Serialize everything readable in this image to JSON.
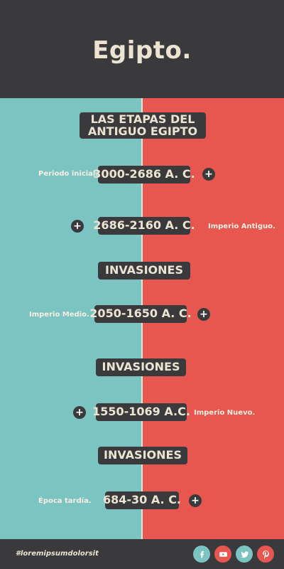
{
  "header": {
    "title": "Egipto."
  },
  "timeline": {
    "heading": "LAS ETAPAS DEL ANTIGUO EGIPTO",
    "entries": [
      {
        "label": "Periodo inicial.",
        "date": "3000-2686 A. C."
      },
      {
        "label": "Imperio Antiguo.",
        "date": "2686-2160 A. C."
      },
      {
        "divider": "INVASIONES"
      },
      {
        "label": "Imperio Medio.",
        "date": "2050-1650 A. C."
      },
      {
        "divider": "INVASIONES"
      },
      {
        "label": "Imperio Nuevo.",
        "date": "1550-1069 A.C."
      },
      {
        "divider": "INVASIONES"
      },
      {
        "label": "Época tardía.",
        "date": "684-30 A. C."
      }
    ]
  },
  "footer": {
    "hashtag": "#loremipsumdolorsit",
    "social": [
      {
        "icon": "facebook-icon",
        "color": "#7cc4c1"
      },
      {
        "icon": "youtube-icon",
        "color": "#e8574f"
      },
      {
        "icon": "twitter-icon",
        "color": "#7cc4c1"
      },
      {
        "icon": "pinterest-icon",
        "color": "#e8574f"
      }
    ]
  },
  "colors": {
    "dark": "#3a3a3c",
    "teal": "#7cc4c1",
    "red": "#e8574f",
    "cream": "#ece4d2"
  }
}
